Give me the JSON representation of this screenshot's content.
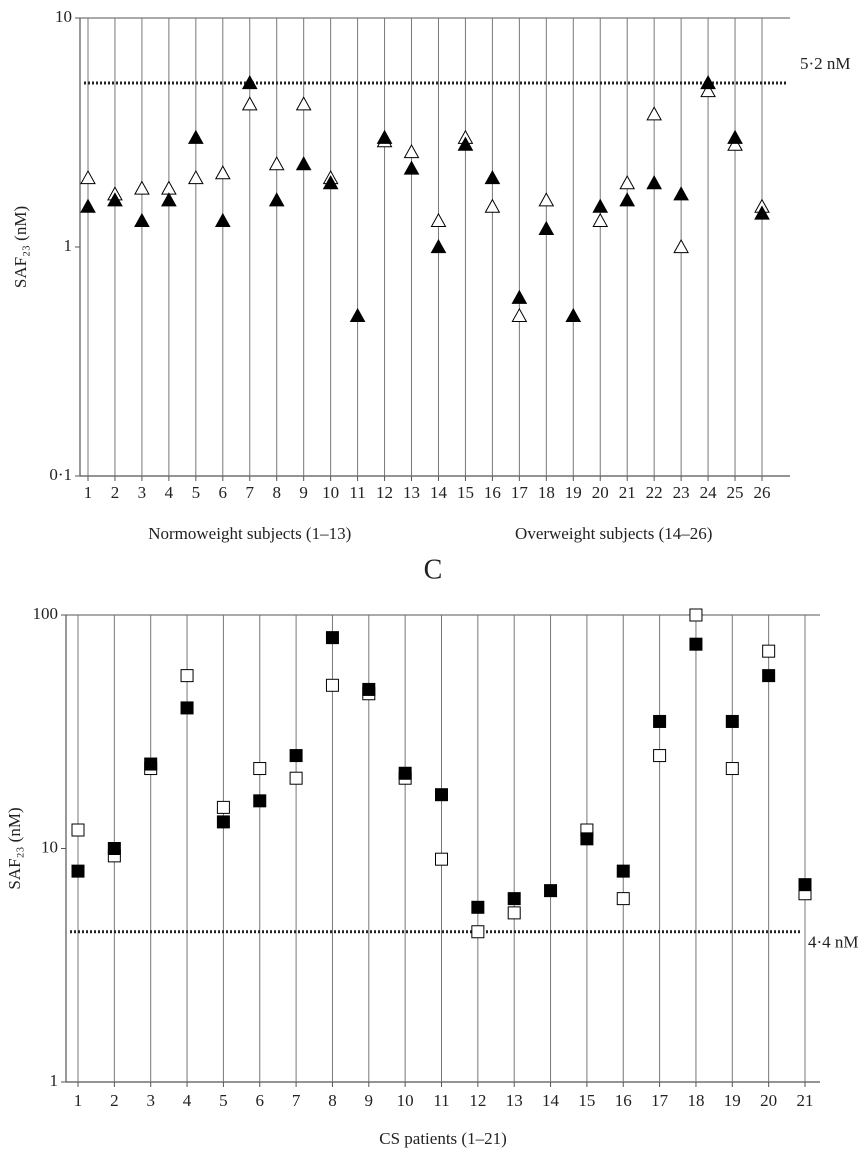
{
  "chart_data": [
    {
      "type": "scatter",
      "y_label": "SAF₂₃ (nM)",
      "log_y": true,
      "ylim": [
        0.1,
        10
      ],
      "yticks": [
        {
          "value": 0.1,
          "label": "0·1"
        },
        1,
        10
      ],
      "categories": [
        "1",
        "2",
        "3",
        "4",
        "5",
        "6",
        "7",
        "8",
        "9",
        "10",
        "11",
        "12",
        "13",
        "14",
        "15",
        "16",
        "17",
        "18",
        "19",
        "20",
        "21",
        "22",
        "23",
        "24",
        "25",
        "26"
      ],
      "group_labels": [
        "Normoweight subjects (1–13)",
        "Overweight subjects (14–26)"
      ],
      "reference_line": {
        "value": 5.2,
        "label": "5·2 nM"
      },
      "series": [
        {
          "marker": "triangle",
          "filled": false,
          "color": "#000000",
          "values": [
            2.0,
            1.7,
            1.8,
            1.8,
            2.0,
            2.1,
            4.2,
            2.3,
            4.2,
            2.0,
            null,
            2.9,
            2.6,
            1.3,
            3.0,
            1.5,
            0.5,
            1.6,
            null,
            1.3,
            1.9,
            3.8,
            1.0,
            4.8,
            2.8,
            1.5
          ]
        },
        {
          "marker": "triangle",
          "filled": true,
          "color": "#000000",
          "values": [
            1.5,
            1.6,
            1.3,
            1.6,
            3.0,
            1.3,
            5.2,
            1.6,
            2.3,
            1.9,
            0.5,
            3.0,
            2.2,
            1.0,
            2.8,
            2.0,
            0.6,
            1.2,
            0.5,
            1.5,
            1.6,
            1.9,
            1.7,
            5.2,
            3.0,
            1.4
          ]
        }
      ]
    },
    {
      "type": "scatter",
      "title": "C",
      "y_label": "SAF₂₃ (nM)",
      "x_label": "CS patients (1–21)",
      "log_y": true,
      "ylim": [
        1,
        100
      ],
      "yticks": [
        1,
        10,
        100
      ],
      "categories": [
        "1",
        "2",
        "3",
        "4",
        "5",
        "6",
        "7",
        "8",
        "9",
        "10",
        "11",
        "12",
        "13",
        "14",
        "15",
        "16",
        "17",
        "18",
        "19",
        "20",
        "21"
      ],
      "reference_line": {
        "value": 4.4,
        "label": "4·4 nM"
      },
      "series": [
        {
          "marker": "square",
          "filled": false,
          "color": "#000000",
          "values": [
            12,
            9.3,
            22,
            55,
            15,
            22,
            20,
            50,
            46,
            20,
            9,
            4.4,
            5.3,
            null,
            12,
            6.1,
            25,
            100,
            22,
            70,
            6.4
          ]
        },
        {
          "marker": "square",
          "filled": true,
          "color": "#000000",
          "values": [
            8,
            10,
            23,
            40,
            13,
            16,
            25,
            80,
            48,
            21,
            17,
            5.6,
            6.1,
            6.6,
            11,
            8,
            35,
            75,
            35,
            55,
            7
          ]
        }
      ]
    }
  ]
}
